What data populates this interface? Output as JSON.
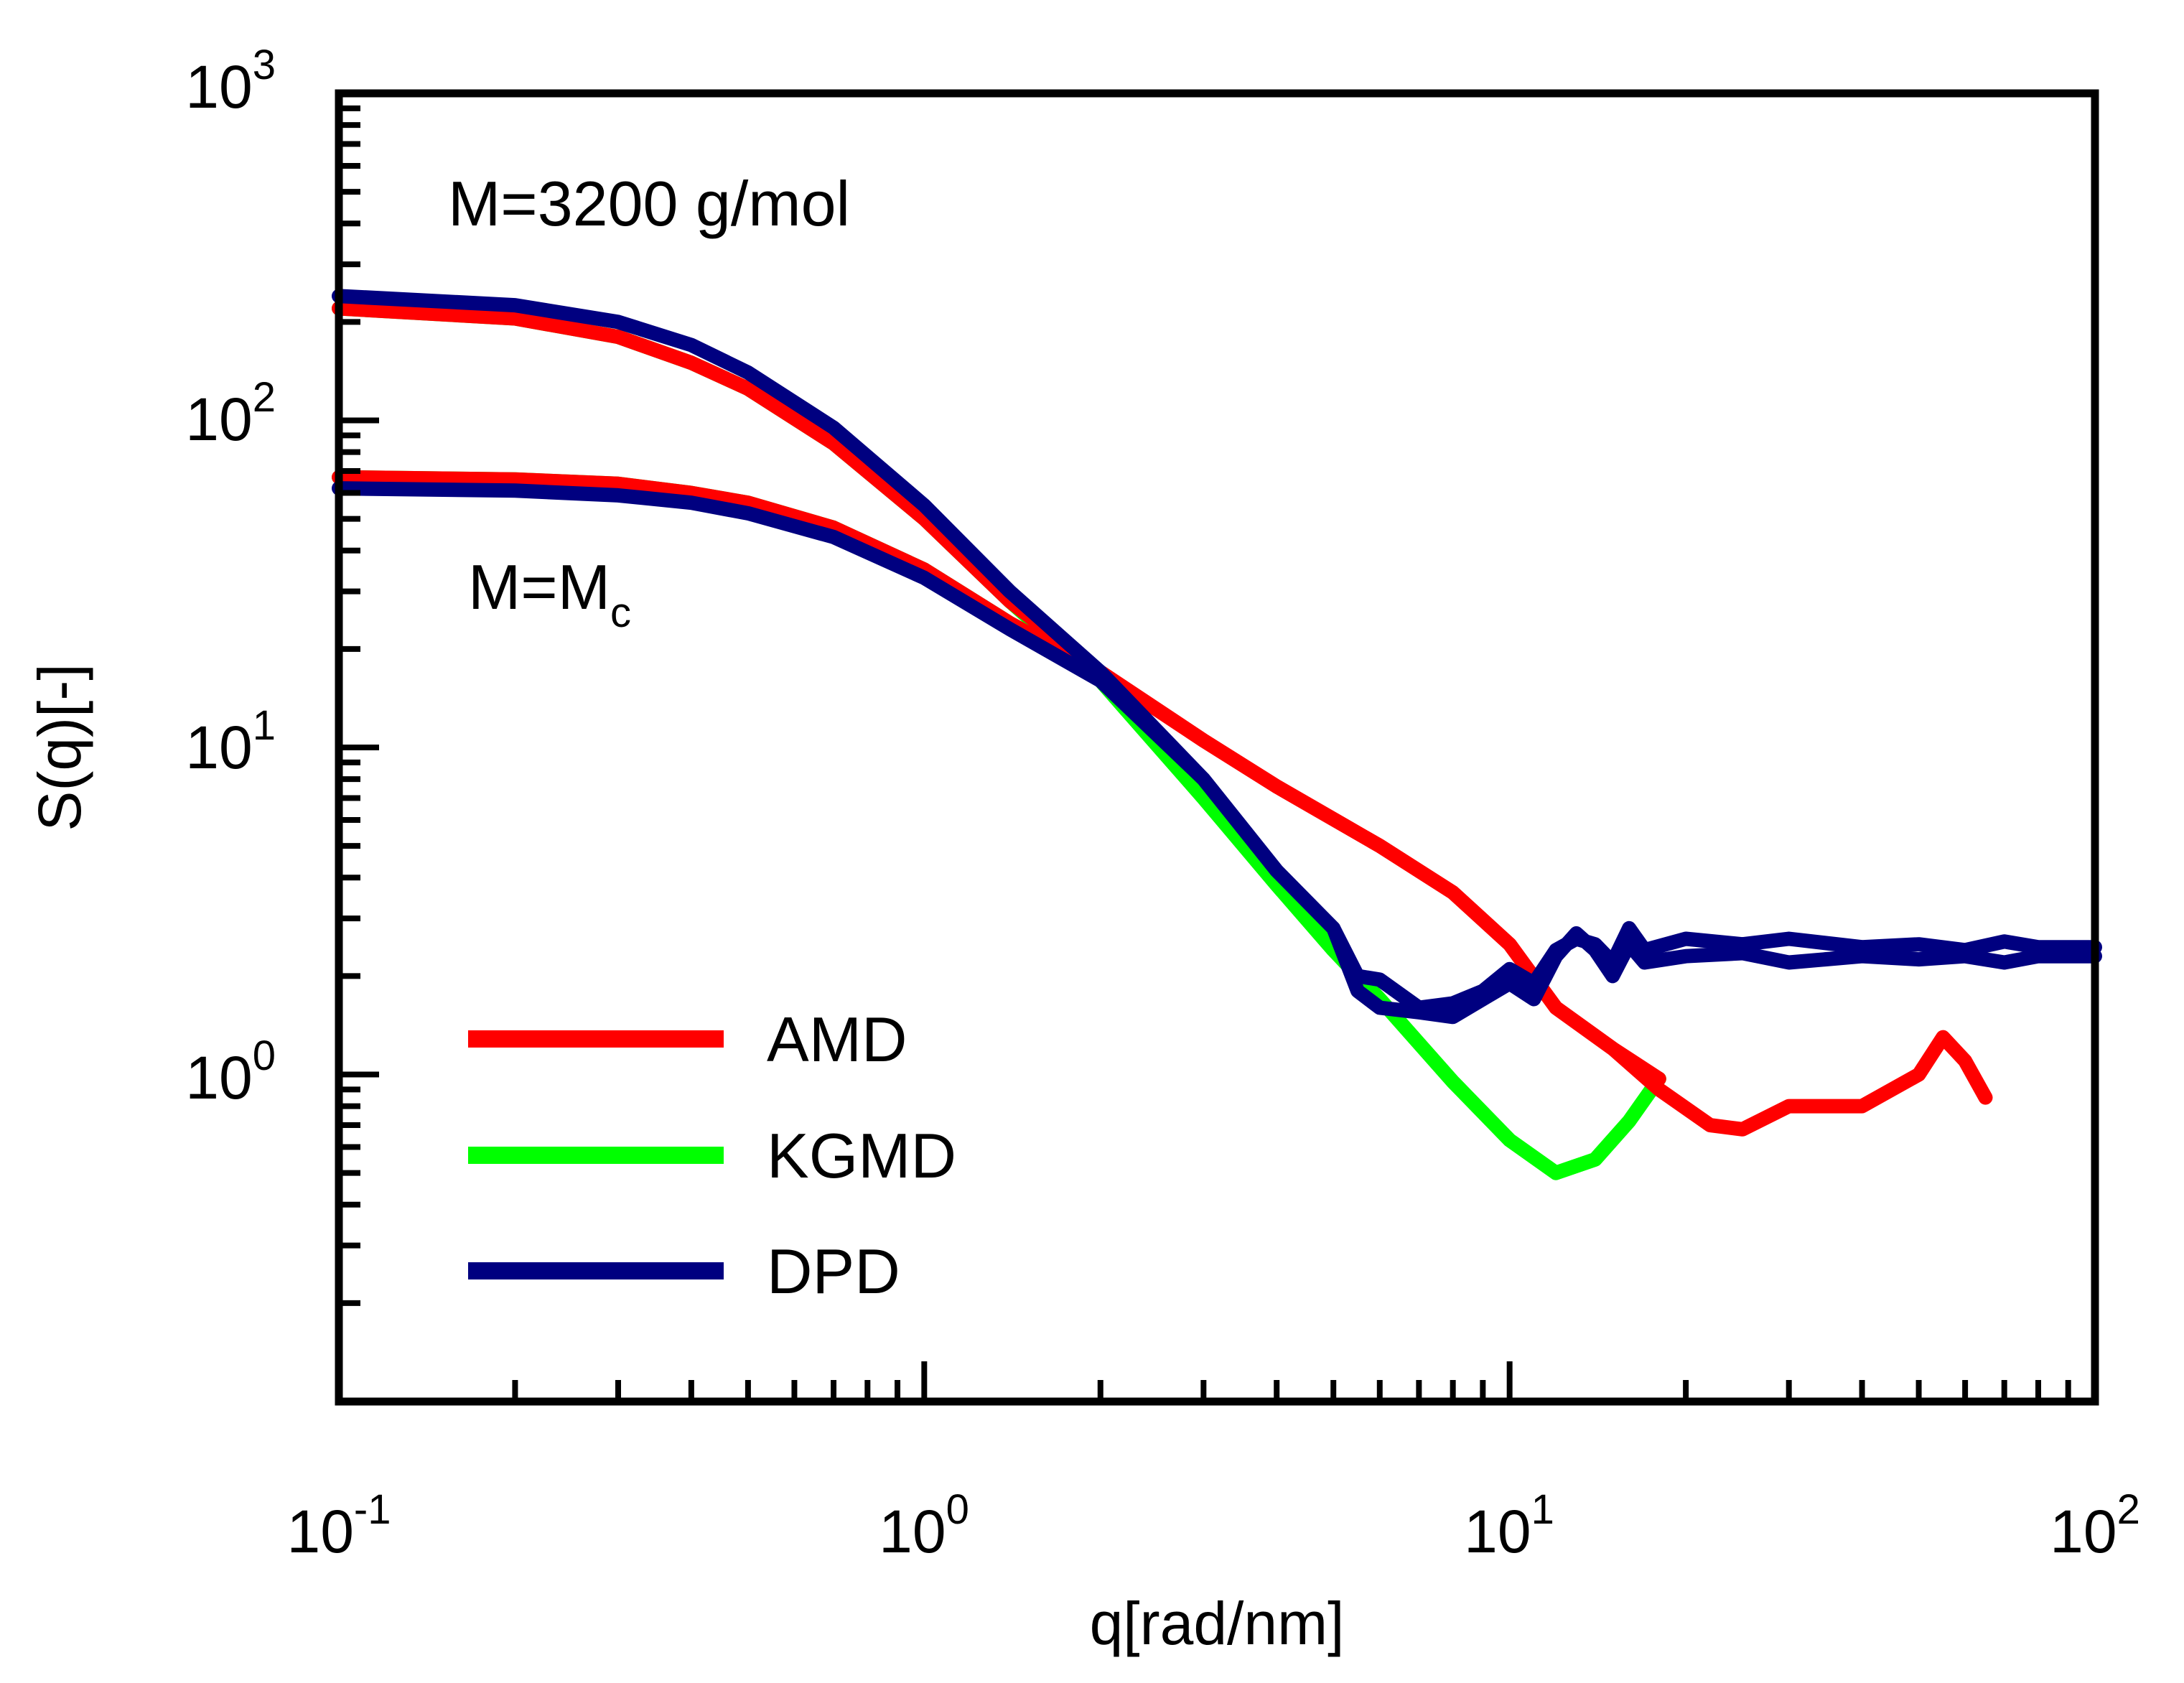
{
  "chart_data": {
    "type": "line",
    "xscale": "log",
    "yscale": "log",
    "xlabel": "q[rad/nm]",
    "ylabel": "S(q)[-]",
    "xlim": [
      0.1,
      100
    ],
    "ylim": [
      0.1,
      1000
    ],
    "x_ticks": [
      {
        "base": "10",
        "exp": "-1",
        "value": 0.1
      },
      {
        "base": "10",
        "exp": "0",
        "value": 1
      },
      {
        "base": "10",
        "exp": "1",
        "value": 10
      },
      {
        "base": "10",
        "exp": "2",
        "value": 100
      }
    ],
    "y_ticks": [
      {
        "base": "10",
        "exp": "0",
        "value": 1
      },
      {
        "base": "10",
        "exp": "1",
        "value": 10
      },
      {
        "base": "10",
        "exp": "2",
        "value": 100
      },
      {
        "base": "10",
        "exp": "3",
        "value": 1000
      }
    ],
    "annotations": {
      "top": "M=3200 g/mol",
      "mc_main": "M=M",
      "mc_sub": "c"
    },
    "legend": {
      "position": "bottom-left",
      "entries": [
        {
          "label": "AMD",
          "color": "#ff0000"
        },
        {
          "label": "KGMD",
          "color": "#00ff00"
        },
        {
          "label": "DPD",
          "color": "#000080"
        }
      ]
    },
    "series": [
      {
        "name": "AMD",
        "group": "M=3200 g/mol",
        "color": "#ff0000",
        "points": [
          [
            0.1,
            220
          ],
          [
            0.2,
            205
          ],
          [
            0.3,
            180
          ],
          [
            0.4,
            150
          ],
          [
            0.5,
            125
          ],
          [
            0.7,
            85
          ],
          [
            1,
            50
          ],
          [
            1.4,
            28
          ],
          [
            2,
            17
          ],
          [
            3,
            10.5
          ],
          [
            4,
            7.6
          ],
          [
            6,
            5.0
          ],
          [
            8,
            3.6
          ],
          [
            10,
            2.5
          ],
          [
            12,
            1.6
          ],
          [
            15,
            1.2
          ],
          [
            18,
            0.97
          ]
        ]
      },
      {
        "name": "KGMD",
        "group": "M=3200 g/mol",
        "color": "#00ff00",
        "points": [
          [
            0.1,
            220
          ],
          [
            0.2,
            205
          ],
          [
            0.3,
            180
          ],
          [
            0.4,
            150
          ],
          [
            0.5,
            125
          ],
          [
            0.7,
            85
          ],
          [
            1,
            50
          ],
          [
            1.4,
            28
          ],
          [
            2,
            16
          ],
          [
            3,
            7.0
          ],
          [
            4,
            3.8
          ],
          [
            5,
            2.4
          ],
          [
            6,
            1.7
          ],
          [
            8,
            0.95
          ],
          [
            10,
            0.63
          ],
          [
            12,
            0.5
          ],
          [
            14,
            0.55
          ],
          [
            16,
            0.72
          ],
          [
            18,
            0.97
          ]
        ]
      },
      {
        "name": "DPD",
        "group": "M=3200 g/mol",
        "color": "#000080",
        "points": [
          [
            0.1,
            240
          ],
          [
            0.2,
            225
          ],
          [
            0.3,
            200
          ],
          [
            0.4,
            170
          ],
          [
            0.5,
            140
          ],
          [
            0.7,
            95
          ],
          [
            1,
            55
          ],
          [
            1.4,
            30
          ],
          [
            2,
            17
          ],
          [
            3,
            8.0
          ],
          [
            4,
            4.2
          ],
          [
            5,
            2.8
          ],
          [
            5.5,
            2.0
          ],
          [
            6,
            1.95
          ],
          [
            7,
            1.6
          ],
          [
            8,
            1.65
          ],
          [
            9,
            1.8
          ],
          [
            10,
            2.1
          ],
          [
            11,
            1.9
          ],
          [
            12,
            2.4
          ],
          [
            13,
            2.6
          ],
          [
            14,
            2.5
          ],
          [
            15,
            2.2
          ],
          [
            16,
            2.8
          ],
          [
            17,
            2.4
          ],
          [
            20,
            2.6
          ],
          [
            25,
            2.5
          ],
          [
            30,
            2.6
          ],
          [
            40,
            2.45
          ],
          [
            50,
            2.5
          ],
          [
            60,
            2.4
          ],
          [
            70,
            2.55
          ],
          [
            80,
            2.45
          ],
          [
            100,
            2.45
          ]
        ]
      },
      {
        "name": "AMD",
        "group": "M=Mc",
        "color": "#ff0000",
        "points": [
          [
            0.1,
            67
          ],
          [
            0.2,
            66
          ],
          [
            0.3,
            64
          ],
          [
            0.4,
            60
          ],
          [
            0.5,
            56
          ],
          [
            0.7,
            47
          ],
          [
            1,
            35
          ],
          [
            1.4,
            24
          ],
          [
            2,
            17
          ],
          [
            3,
            10.5
          ],
          [
            4,
            7.6
          ],
          [
            6,
            5.0
          ],
          [
            8,
            3.6
          ],
          [
            10,
            2.5
          ],
          [
            12,
            1.6
          ],
          [
            15,
            1.2
          ],
          [
            18,
            0.9
          ],
          [
            22,
            0.7
          ],
          [
            25,
            0.68
          ],
          [
            30,
            0.8
          ],
          [
            40,
            0.8
          ],
          [
            50,
            1.0
          ],
          [
            55,
            1.3
          ],
          [
            60,
            1.1
          ],
          [
            65,
            0.85
          ]
        ]
      },
      {
        "name": "KGMD",
        "group": "M=Mc",
        "color": "#00ff00",
        "points": [
          [
            0.1,
            67
          ],
          [
            0.2,
            66
          ],
          [
            0.3,
            64
          ],
          [
            0.4,
            60
          ],
          [
            0.5,
            56
          ],
          [
            0.7,
            47
          ],
          [
            1,
            35
          ],
          [
            1.4,
            24
          ],
          [
            2,
            16
          ],
          [
            3,
            7.0
          ],
          [
            4,
            3.8
          ],
          [
            5,
            2.4
          ],
          [
            6,
            1.7
          ],
          [
            8,
            0.95
          ],
          [
            10,
            0.63
          ],
          [
            12,
            0.5
          ],
          [
            14,
            0.55
          ],
          [
            16,
            0.72
          ],
          [
            18,
            0.97
          ]
        ]
      },
      {
        "name": "DPD",
        "group": "M=Mc",
        "color": "#000080",
        "points": [
          [
            0.1,
            62
          ],
          [
            0.2,
            61
          ],
          [
            0.3,
            59
          ],
          [
            0.4,
            56
          ],
          [
            0.5,
            52
          ],
          [
            0.7,
            44
          ],
          [
            1,
            33
          ],
          [
            1.4,
            23
          ],
          [
            2,
            16
          ],
          [
            3,
            8.0
          ],
          [
            4,
            4.2
          ],
          [
            5,
            2.8
          ],
          [
            5.5,
            1.8
          ],
          [
            6,
            1.6
          ],
          [
            7,
            1.55
          ],
          [
            8,
            1.5
          ],
          [
            9,
            1.7
          ],
          [
            10,
            1.9
          ],
          [
            11,
            1.7
          ],
          [
            12,
            2.3
          ],
          [
            13,
            2.7
          ],
          [
            14,
            2.4
          ],
          [
            15,
            2.0
          ],
          [
            16,
            2.5
          ],
          [
            17,
            2.2
          ],
          [
            20,
            2.3
          ],
          [
            25,
            2.35
          ],
          [
            30,
            2.2
          ],
          [
            40,
            2.3
          ],
          [
            50,
            2.25
          ],
          [
            60,
            2.3
          ],
          [
            70,
            2.2
          ],
          [
            80,
            2.3
          ],
          [
            100,
            2.3
          ]
        ]
      }
    ]
  }
}
